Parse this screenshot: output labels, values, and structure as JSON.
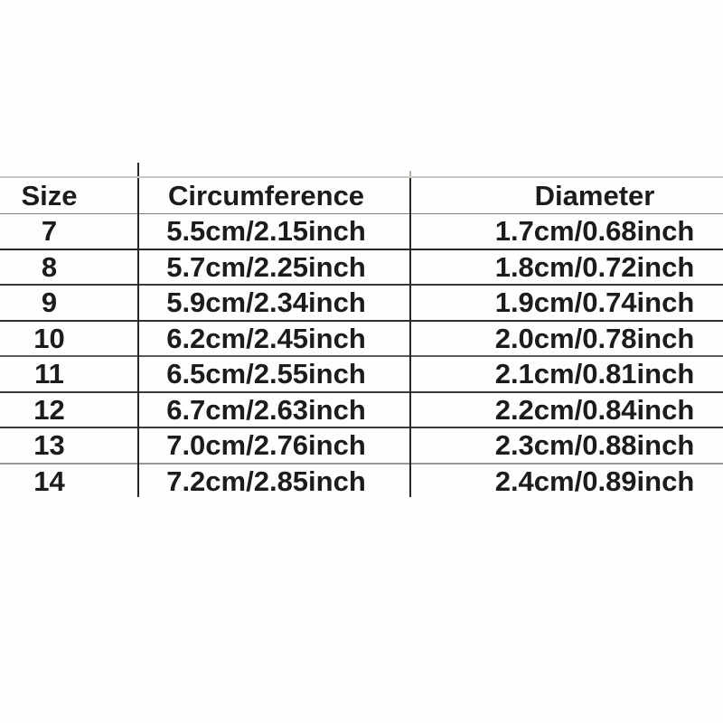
{
  "chart_data": {
    "type": "table",
    "title": "",
    "columns": [
      "Size",
      "Circumference",
      "Diameter"
    ],
    "rows": [
      [
        "7",
        "5.5cm/2.15inch",
        "1.7cm/0.68inch"
      ],
      [
        "8",
        "5.7cm/2.25inch",
        "1.8cm/0.72inch"
      ],
      [
        "9",
        "5.9cm/2.34inch",
        "1.9cm/0.74inch"
      ],
      [
        "10",
        "6.2cm/2.45inch",
        "2.0cm/0.78inch"
      ],
      [
        "11",
        "6.5cm/2.55inch",
        "2.1cm/0.81inch"
      ],
      [
        "12",
        "6.7cm/2.63inch",
        "2.2cm/0.84inch"
      ],
      [
        "13",
        "7.0cm/2.76inch",
        "2.3cm/0.88inch"
      ],
      [
        "14",
        "7.2cm/2.85inch",
        "2.4cm/0.89inch"
      ]
    ]
  },
  "colors": {
    "text": "#1c1c1c",
    "row_separator": "#3a3a3a",
    "top_border": "#c9c6c0",
    "background": "#fefefe"
  }
}
